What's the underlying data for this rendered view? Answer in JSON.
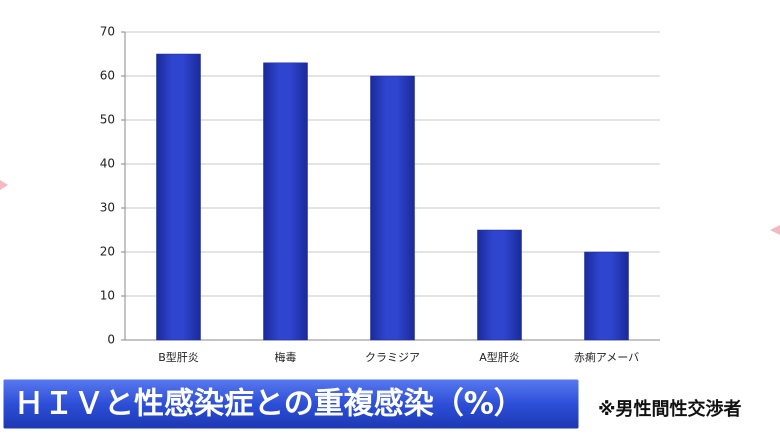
{
  "chart_data": {
    "type": "bar",
    "title": "ＨＩＶと性感染症との重複感染（%）",
    "annotation": "※男性間性交渉者",
    "categories": [
      "B型肝炎",
      "梅毒",
      "クラミジア",
      "A型肝炎",
      "赤痢アメーバ"
    ],
    "values": [
      65,
      63,
      60,
      25,
      20
    ],
    "color": "#2f45cf",
    "ylim": [
      0,
      70
    ],
    "yticks": [
      0,
      10,
      20,
      30,
      40,
      50,
      60,
      70
    ],
    "grid": true
  }
}
